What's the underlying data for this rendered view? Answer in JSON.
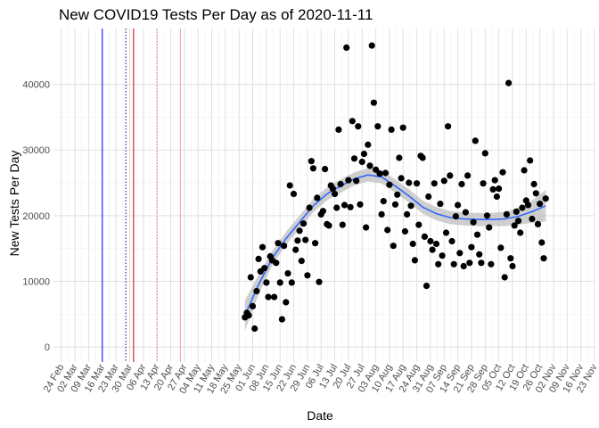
{
  "chart_data": {
    "type": "scatter",
    "title": "New COVID19 Tests Per Day as of 2020-11-11",
    "xlabel": "Date",
    "ylabel": "New Tests Per Day",
    "xlim": [
      "2020-02-20",
      "2020-11-23"
    ],
    "ylim": [
      -2300,
      48500
    ],
    "grid": true,
    "legend": "none",
    "y_ticks": [
      {
        "value": 0,
        "label": "0"
      },
      {
        "value": 10000,
        "label": "10000"
      },
      {
        "value": 20000,
        "label": "20000"
      },
      {
        "value": 30000,
        "label": "30000"
      },
      {
        "value": 40000,
        "label": "40000"
      }
    ],
    "x_ticks": [
      {
        "date": "2020-02-24",
        "label": "24 Feb"
      },
      {
        "date": "2020-03-02",
        "label": "02 Mar"
      },
      {
        "date": "2020-03-09",
        "label": "09 Mar"
      },
      {
        "date": "2020-03-16",
        "label": "16 Mar"
      },
      {
        "date": "2020-03-23",
        "label": "23 Mar"
      },
      {
        "date": "2020-03-30",
        "label": "30 Mar"
      },
      {
        "date": "2020-04-06",
        "label": "06 Apr"
      },
      {
        "date": "2020-04-13",
        "label": "13 Apr"
      },
      {
        "date": "2020-04-20",
        "label": "20 Apr"
      },
      {
        "date": "2020-04-27",
        "label": "27 Apr"
      },
      {
        "date": "2020-05-04",
        "label": "04 May"
      },
      {
        "date": "2020-05-11",
        "label": "11 May"
      },
      {
        "date": "2020-05-18",
        "label": "18 May"
      },
      {
        "date": "2020-05-25",
        "label": "25 May"
      },
      {
        "date": "2020-06-01",
        "label": "01 Jun"
      },
      {
        "date": "2020-06-08",
        "label": "08 Jun"
      },
      {
        "date": "2020-06-15",
        "label": "15 Jun"
      },
      {
        "date": "2020-06-22",
        "label": "22 Jun"
      },
      {
        "date": "2020-06-29",
        "label": "29 Jun"
      },
      {
        "date": "2020-07-06",
        "label": "06 Jul"
      },
      {
        "date": "2020-07-13",
        "label": "13 Jul"
      },
      {
        "date": "2020-07-20",
        "label": "20 Jul"
      },
      {
        "date": "2020-07-27",
        "label": "27 Jul"
      },
      {
        "date": "2020-08-03",
        "label": "03 Aug"
      },
      {
        "date": "2020-08-10",
        "label": "10 Aug"
      },
      {
        "date": "2020-08-17",
        "label": "17 Aug"
      },
      {
        "date": "2020-08-24",
        "label": "24 Aug"
      },
      {
        "date": "2020-08-31",
        "label": "31 Aug"
      },
      {
        "date": "2020-09-07",
        "label": "07 Sep"
      },
      {
        "date": "2020-09-14",
        "label": "14 Sep"
      },
      {
        "date": "2020-09-21",
        "label": "21 Sep"
      },
      {
        "date": "2020-09-28",
        "label": "28 Sep"
      },
      {
        "date": "2020-10-05",
        "label": "05 Oct"
      },
      {
        "date": "2020-10-12",
        "label": "12 Oct"
      },
      {
        "date": "2020-10-19",
        "label": "19 Oct"
      },
      {
        "date": "2020-10-26",
        "label": "26 Oct"
      },
      {
        "date": "2020-11-02",
        "label": "02 Nov"
      },
      {
        "date": "2020-11-09",
        "label": "09 Nov"
      },
      {
        "date": "2020-11-16",
        "label": "16 Nov"
      },
      {
        "date": "2020-11-23",
        "label": "23 Nov"
      }
    ],
    "vlines": [
      {
        "date": "2020-03-16",
        "color": "#0000ff",
        "style": "solid"
      },
      {
        "date": "2020-03-28",
        "color": "#00008b",
        "style": "dotted"
      },
      {
        "date": "2020-04-01",
        "color": "#cc0000",
        "style": "solid"
      },
      {
        "date": "2020-04-13",
        "color": "#e06060",
        "style": "dotted"
      },
      {
        "date": "2020-04-25",
        "color": "#e8a0b8",
        "style": "solid"
      }
    ],
    "colors": {
      "points": "#000000",
      "smooth_line": "#3366ff",
      "ribbon": "#bfbfbf",
      "grid_major": "#e0e0e0",
      "grid_minor": "#f0f0f0"
    },
    "points": [
      {
        "x": "2020-05-28",
        "y": 4500
      },
      {
        "x": "2020-05-29",
        "y": 5200
      },
      {
        "x": "2020-05-30",
        "y": 4800
      },
      {
        "x": "2020-05-31",
        "y": 10600
      },
      {
        "x": "2020-06-01",
        "y": 6200
      },
      {
        "x": "2020-06-02",
        "y": 2800
      },
      {
        "x": "2020-06-03",
        "y": 8500
      },
      {
        "x": "2020-06-04",
        "y": 13400
      },
      {
        "x": "2020-06-05",
        "y": 11500
      },
      {
        "x": "2020-06-06",
        "y": 15200
      },
      {
        "x": "2020-06-07",
        "y": 12000
      },
      {
        "x": "2020-06-08",
        "y": 9800
      },
      {
        "x": "2020-06-09",
        "y": 7600
      },
      {
        "x": "2020-06-10",
        "y": 13800
      },
      {
        "x": "2020-06-11",
        "y": 13200
      },
      {
        "x": "2020-06-12",
        "y": 7600
      },
      {
        "x": "2020-06-13",
        "y": 12800
      },
      {
        "x": "2020-06-14",
        "y": 15800
      },
      {
        "x": "2020-06-15",
        "y": 9800
      },
      {
        "x": "2020-06-16",
        "y": 4200
      },
      {
        "x": "2020-06-17",
        "y": 15400
      },
      {
        "x": "2020-06-18",
        "y": 6800
      },
      {
        "x": "2020-06-19",
        "y": 11200
      },
      {
        "x": "2020-06-20",
        "y": 24600
      },
      {
        "x": "2020-06-21",
        "y": 9800
      },
      {
        "x": "2020-06-22",
        "y": 23300
      },
      {
        "x": "2020-06-23",
        "y": 14800
      },
      {
        "x": "2020-06-24",
        "y": 16200
      },
      {
        "x": "2020-06-25",
        "y": 17700
      },
      {
        "x": "2020-06-26",
        "y": 13100
      },
      {
        "x": "2020-06-27",
        "y": 18800
      },
      {
        "x": "2020-06-28",
        "y": 16300
      },
      {
        "x": "2020-06-29",
        "y": 10900
      },
      {
        "x": "2020-06-30",
        "y": 21200
      },
      {
        "x": "2020-07-01",
        "y": 28300
      },
      {
        "x": "2020-07-02",
        "y": 27200
      },
      {
        "x": "2020-07-03",
        "y": 15800
      },
      {
        "x": "2020-07-04",
        "y": 22700
      },
      {
        "x": "2020-07-05",
        "y": 9900
      },
      {
        "x": "2020-07-06",
        "y": 20200
      },
      {
        "x": "2020-07-07",
        "y": 20700
      },
      {
        "x": "2020-07-08",
        "y": 27100
      },
      {
        "x": "2020-07-09",
        "y": 18700
      },
      {
        "x": "2020-07-10",
        "y": 18500
      },
      {
        "x": "2020-07-11",
        "y": 24600
      },
      {
        "x": "2020-07-12",
        "y": 24100
      },
      {
        "x": "2020-07-13",
        "y": 23300
      },
      {
        "x": "2020-07-14",
        "y": 21200
      },
      {
        "x": "2020-07-15",
        "y": 33100
      },
      {
        "x": "2020-07-16",
        "y": 24800
      },
      {
        "x": "2020-07-17",
        "y": 18600
      },
      {
        "x": "2020-07-18",
        "y": 21600
      },
      {
        "x": "2020-07-19",
        "y": 45600
      },
      {
        "x": "2020-07-20",
        "y": 25400
      },
      {
        "x": "2020-07-21",
        "y": 21300
      },
      {
        "x": "2020-07-22",
        "y": 34400
      },
      {
        "x": "2020-07-23",
        "y": 28700
      },
      {
        "x": "2020-07-24",
        "y": 25300
      },
      {
        "x": "2020-07-25",
        "y": 33600
      },
      {
        "x": "2020-07-26",
        "y": 21700
      },
      {
        "x": "2020-07-27",
        "y": 28200
      },
      {
        "x": "2020-07-28",
        "y": 29400
      },
      {
        "x": "2020-07-29",
        "y": 18200
      },
      {
        "x": "2020-07-30",
        "y": 30800
      },
      {
        "x": "2020-07-31",
        "y": 27600
      },
      {
        "x": "2020-08-01",
        "y": 45900
      },
      {
        "x": "2020-08-02",
        "y": 37200
      },
      {
        "x": "2020-08-03",
        "y": 27000
      },
      {
        "x": "2020-08-04",
        "y": 33600
      },
      {
        "x": "2020-08-05",
        "y": 26400
      },
      {
        "x": "2020-08-06",
        "y": 20200
      },
      {
        "x": "2020-08-07",
        "y": 22200
      },
      {
        "x": "2020-08-08",
        "y": 26500
      },
      {
        "x": "2020-08-09",
        "y": 17800
      },
      {
        "x": "2020-08-10",
        "y": 24700
      },
      {
        "x": "2020-08-11",
        "y": 33100
      },
      {
        "x": "2020-08-12",
        "y": 15400
      },
      {
        "x": "2020-08-13",
        "y": 21700
      },
      {
        "x": "2020-08-14",
        "y": 23200
      },
      {
        "x": "2020-08-15",
        "y": 28800
      },
      {
        "x": "2020-08-16",
        "y": 25700
      },
      {
        "x": "2020-08-17",
        "y": 33400
      },
      {
        "x": "2020-08-18",
        "y": 17600
      },
      {
        "x": "2020-08-19",
        "y": 20200
      },
      {
        "x": "2020-08-20",
        "y": 25000
      },
      {
        "x": "2020-08-21",
        "y": 21500
      },
      {
        "x": "2020-08-22",
        "y": 15700
      },
      {
        "x": "2020-08-23",
        "y": 13200
      },
      {
        "x": "2020-08-24",
        "y": 24900
      },
      {
        "x": "2020-08-25",
        "y": 18600
      },
      {
        "x": "2020-08-26",
        "y": 29100
      },
      {
        "x": "2020-08-27",
        "y": 28800
      },
      {
        "x": "2020-08-28",
        "y": 16800
      },
      {
        "x": "2020-08-29",
        "y": 9300
      },
      {
        "x": "2020-08-30",
        "y": 22900
      },
      {
        "x": "2020-08-31",
        "y": 16100
      },
      {
        "x": "2020-09-01",
        "y": 14800
      },
      {
        "x": "2020-09-02",
        "y": 24900
      },
      {
        "x": "2020-09-03",
        "y": 15700
      },
      {
        "x": "2020-09-04",
        "y": 12600
      },
      {
        "x": "2020-09-05",
        "y": 21800
      },
      {
        "x": "2020-09-06",
        "y": 13900
      },
      {
        "x": "2020-09-07",
        "y": 25300
      },
      {
        "x": "2020-09-08",
        "y": 17400
      },
      {
        "x": "2020-09-09",
        "y": 33600
      },
      {
        "x": "2020-09-10",
        "y": 26100
      },
      {
        "x": "2020-09-11",
        "y": 16100
      },
      {
        "x": "2020-09-12",
        "y": 12600
      },
      {
        "x": "2020-09-13",
        "y": 19900
      },
      {
        "x": "2020-09-14",
        "y": 21600
      },
      {
        "x": "2020-09-15",
        "y": 14300
      },
      {
        "x": "2020-09-16",
        "y": 24800
      },
      {
        "x": "2020-09-17",
        "y": 12300
      },
      {
        "x": "2020-09-18",
        "y": 20500
      },
      {
        "x": "2020-09-19",
        "y": 26100
      },
      {
        "x": "2020-09-20",
        "y": 12800
      },
      {
        "x": "2020-09-21",
        "y": 15200
      },
      {
        "x": "2020-09-22",
        "y": 19000
      },
      {
        "x": "2020-09-23",
        "y": 31400
      },
      {
        "x": "2020-09-24",
        "y": 17100
      },
      {
        "x": "2020-09-25",
        "y": 14100
      },
      {
        "x": "2020-09-26",
        "y": 12800
      },
      {
        "x": "2020-09-27",
        "y": 24900
      },
      {
        "x": "2020-09-28",
        "y": 29500
      },
      {
        "x": "2020-09-29",
        "y": 20000
      },
      {
        "x": "2020-09-30",
        "y": 18200
      },
      {
        "x": "2020-10-01",
        "y": 12600
      },
      {
        "x": "2020-10-02",
        "y": 24000
      },
      {
        "x": "2020-10-03",
        "y": 25400
      },
      {
        "x": "2020-10-04",
        "y": 22900
      },
      {
        "x": "2020-10-05",
        "y": 24100
      },
      {
        "x": "2020-10-06",
        "y": 15100
      },
      {
        "x": "2020-10-07",
        "y": 26600
      },
      {
        "x": "2020-10-08",
        "y": 10600
      },
      {
        "x": "2020-10-09",
        "y": 20200
      },
      {
        "x": "2020-10-10",
        "y": 40200
      },
      {
        "x": "2020-10-11",
        "y": 13500
      },
      {
        "x": "2020-10-12",
        "y": 12300
      },
      {
        "x": "2020-10-13",
        "y": 18500
      },
      {
        "x": "2020-10-14",
        "y": 20600
      },
      {
        "x": "2020-10-15",
        "y": 19200
      },
      {
        "x": "2020-10-16",
        "y": 17400
      },
      {
        "x": "2020-10-17",
        "y": 21200
      },
      {
        "x": "2020-10-18",
        "y": 26900
      },
      {
        "x": "2020-10-19",
        "y": 22300
      },
      {
        "x": "2020-10-20",
        "y": 21600
      },
      {
        "x": "2020-10-21",
        "y": 28400
      },
      {
        "x": "2020-10-22",
        "y": 19500
      },
      {
        "x": "2020-10-23",
        "y": 24800
      },
      {
        "x": "2020-10-24",
        "y": 23400
      },
      {
        "x": "2020-10-25",
        "y": 18700
      },
      {
        "x": "2020-10-26",
        "y": 21800
      },
      {
        "x": "2020-10-27",
        "y": 15900
      },
      {
        "x": "2020-10-28",
        "y": 13500
      },
      {
        "x": "2020-10-29",
        "y": 22600
      }
    ],
    "smooth": [
      {
        "x": "2020-05-28",
        "y": 4800
      },
      {
        "x": "2020-06-04",
        "y": 9500
      },
      {
        "x": "2020-06-11",
        "y": 13500
      },
      {
        "x": "2020-06-18",
        "y": 16500
      },
      {
        "x": "2020-06-25",
        "y": 19000
      },
      {
        "x": "2020-07-02",
        "y": 21500
      },
      {
        "x": "2020-07-09",
        "y": 23300
      },
      {
        "x": "2020-07-16",
        "y": 24500
      },
      {
        "x": "2020-07-23",
        "y": 25600
      },
      {
        "x": "2020-07-30",
        "y": 26200
      },
      {
        "x": "2020-08-06",
        "y": 25900
      },
      {
        "x": "2020-08-13",
        "y": 24500
      },
      {
        "x": "2020-08-20",
        "y": 23000
      },
      {
        "x": "2020-08-27",
        "y": 21300
      },
      {
        "x": "2020-09-03",
        "y": 20300
      },
      {
        "x": "2020-09-10",
        "y": 19700
      },
      {
        "x": "2020-09-17",
        "y": 19500
      },
      {
        "x": "2020-09-24",
        "y": 19400
      },
      {
        "x": "2020-10-01",
        "y": 19400
      },
      {
        "x": "2020-10-08",
        "y": 19500
      },
      {
        "x": "2020-10-15",
        "y": 19900
      },
      {
        "x": "2020-10-22",
        "y": 20600
      },
      {
        "x": "2020-10-29",
        "y": 21500
      }
    ],
    "ribbon_half_width": [
      2300,
      1500,
      1100,
      1000,
      1000,
      1000,
      1000,
      1000,
      1000,
      1000,
      1000,
      1000,
      1000,
      1000,
      1000,
      1000,
      1000,
      1000,
      1000,
      1100,
      1300,
      1700,
      2400
    ]
  }
}
